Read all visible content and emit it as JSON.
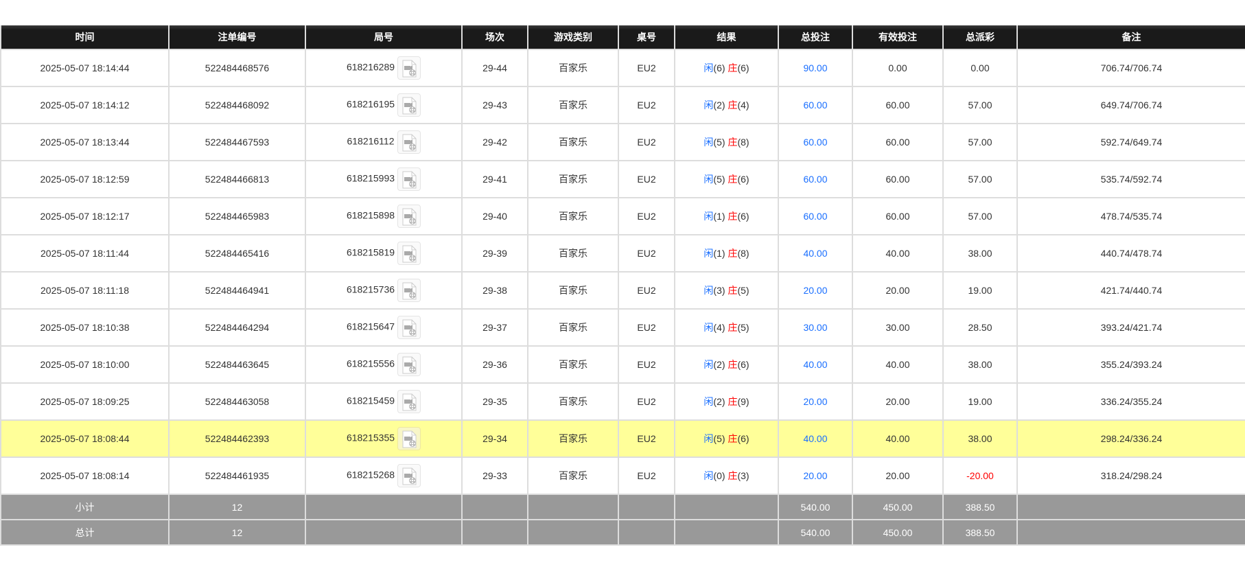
{
  "headers": [
    "时间",
    "注单编号",
    "局号",
    "场次",
    "游戏类别",
    "桌号",
    "结果",
    "总投注",
    "有效投注",
    "总派彩",
    "备注"
  ],
  "player_label": "闲",
  "banker_label": "庄",
  "colors": {
    "header_bg": "#1a1a1a",
    "blue": "#1a6fff",
    "red": "#ff0000",
    "highlight": "#ffff99",
    "summary_bg": "#999999"
  },
  "rows": [
    {
      "time": "2025-05-07 18:14:44",
      "bet_id": "522484468576",
      "round": "618216289",
      "shoe": "29-44",
      "game": "百家乐",
      "table": "EU2",
      "player": "(6)",
      "banker": "(6)",
      "total": "90.00",
      "valid": "0.00",
      "payout": "0.00",
      "payout_neg": false,
      "note": "706.74/706.74"
    },
    {
      "time": "2025-05-07 18:14:12",
      "bet_id": "522484468092",
      "round": "618216195",
      "shoe": "29-43",
      "game": "百家乐",
      "table": "EU2",
      "player": "(2)",
      "banker": "(4)",
      "total": "60.00",
      "valid": "60.00",
      "payout": "57.00",
      "payout_neg": false,
      "note": "649.74/706.74"
    },
    {
      "time": "2025-05-07 18:13:44",
      "bet_id": "522484467593",
      "round": "618216112",
      "shoe": "29-42",
      "game": "百家乐",
      "table": "EU2",
      "player": "(5)",
      "banker": "(8)",
      "total": "60.00",
      "valid": "60.00",
      "payout": "57.00",
      "payout_neg": false,
      "note": "592.74/649.74"
    },
    {
      "time": "2025-05-07 18:12:59",
      "bet_id": "522484466813",
      "round": "618215993",
      "shoe": "29-41",
      "game": "百家乐",
      "table": "EU2",
      "player": "(5)",
      "banker": "(6)",
      "total": "60.00",
      "valid": "60.00",
      "payout": "57.00",
      "payout_neg": false,
      "note": "535.74/592.74"
    },
    {
      "time": "2025-05-07 18:12:17",
      "bet_id": "522484465983",
      "round": "618215898",
      "shoe": "29-40",
      "game": "百家乐",
      "table": "EU2",
      "player": "(1)",
      "banker": "(6)",
      "total": "60.00",
      "valid": "60.00",
      "payout": "57.00",
      "payout_neg": false,
      "note": "478.74/535.74"
    },
    {
      "time": "2025-05-07 18:11:44",
      "bet_id": "522484465416",
      "round": "618215819",
      "shoe": "29-39",
      "game": "百家乐",
      "table": "EU2",
      "player": "(1)",
      "banker": "(8)",
      "total": "40.00",
      "valid": "40.00",
      "payout": "38.00",
      "payout_neg": false,
      "note": "440.74/478.74"
    },
    {
      "time": "2025-05-07 18:11:18",
      "bet_id": "522484464941",
      "round": "618215736",
      "shoe": "29-38",
      "game": "百家乐",
      "table": "EU2",
      "player": "(3)",
      "banker": "(5)",
      "total": "20.00",
      "valid": "20.00",
      "payout": "19.00",
      "payout_neg": false,
      "note": "421.74/440.74"
    },
    {
      "time": "2025-05-07 18:10:38",
      "bet_id": "522484464294",
      "round": "618215647",
      "shoe": "29-37",
      "game": "百家乐",
      "table": "EU2",
      "player": "(4)",
      "banker": "(5)",
      "total": "30.00",
      "valid": "30.00",
      "payout": "28.50",
      "payout_neg": false,
      "note": "393.24/421.74"
    },
    {
      "time": "2025-05-07 18:10:00",
      "bet_id": "522484463645",
      "round": "618215556",
      "shoe": "29-36",
      "game": "百家乐",
      "table": "EU2",
      "player": "(2)",
      "banker": "(6)",
      "total": "40.00",
      "valid": "40.00",
      "payout": "38.00",
      "payout_neg": false,
      "note": "355.24/393.24"
    },
    {
      "time": "2025-05-07 18:09:25",
      "bet_id": "522484463058",
      "round": "618215459",
      "shoe": "29-35",
      "game": "百家乐",
      "table": "EU2",
      "player": "(2)",
      "banker": "(9)",
      "total": "20.00",
      "valid": "20.00",
      "payout": "19.00",
      "payout_neg": false,
      "note": "336.24/355.24"
    },
    {
      "time": "2025-05-07 18:08:44",
      "bet_id": "522484462393",
      "round": "618215355",
      "shoe": "29-34",
      "game": "百家乐",
      "table": "EU2",
      "player": "(5)",
      "banker": "(6)",
      "total": "40.00",
      "valid": "40.00",
      "payout": "38.00",
      "payout_neg": false,
      "note": "298.24/336.24",
      "highlighted": true
    },
    {
      "time": "2025-05-07 18:08:14",
      "bet_id": "522484461935",
      "round": "618215268",
      "shoe": "29-33",
      "game": "百家乐",
      "table": "EU2",
      "player": "(0)",
      "banker": "(3)",
      "total": "20.00",
      "valid": "20.00",
      "payout": "-20.00",
      "payout_neg": true,
      "note": "318.24/298.24"
    }
  ],
  "summary": [
    {
      "label": "小计",
      "count": "12",
      "total": "540.00",
      "valid": "450.00",
      "payout": "388.50"
    },
    {
      "label": "总计",
      "count": "12",
      "total": "540.00",
      "valid": "450.00",
      "payout": "388.50"
    }
  ]
}
